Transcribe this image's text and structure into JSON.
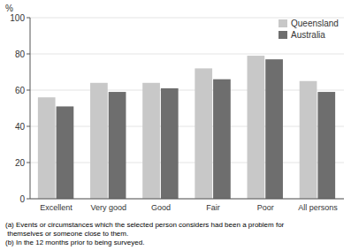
{
  "chart_data": {
    "type": "bar",
    "categories": [
      "Excellent",
      "Very good",
      "Good",
      "Fair",
      "Poor",
      "All persons"
    ],
    "series": [
      {
        "name": "Queensland",
        "color": "#c8c8c8",
        "values": [
          56,
          64,
          64,
          72,
          79,
          65
        ]
      },
      {
        "name": "Australia",
        "color": "#6e6e6e",
        "values": [
          51,
          59,
          61,
          66,
          77,
          59
        ]
      }
    ],
    "y_label": "%",
    "ylim": [
      0,
      100
    ],
    "yticks": [
      0,
      20,
      40,
      60,
      80,
      100
    ],
    "grid": true,
    "legend": "upper right",
    "annotations": [
      "(a) Events or circumstances which the selected person considers had been a problem for",
      " themselves or someone close to them.",
      "(b) In the 12 months prior to being surveyed."
    ]
  }
}
